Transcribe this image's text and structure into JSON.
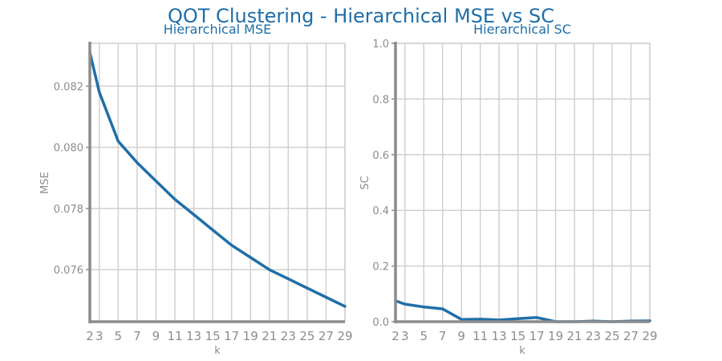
{
  "figure": {
    "title": "QOT Clustering - Hierarchical MSE vs SC",
    "line_color": "#1f6ea8",
    "title_color": "#1f6ea8",
    "axis_color": "#8c8c8c",
    "grid_color": "#d0d0d0"
  },
  "chart_data": [
    {
      "type": "line",
      "title": "Hierarchical MSE",
      "xlabel": "k",
      "ylabel": "MSE",
      "x": [
        2,
        3,
        5,
        7,
        9,
        11,
        13,
        15,
        17,
        19,
        21,
        23,
        25,
        27,
        29
      ],
      "xticks": [
        2,
        3,
        5,
        7,
        9,
        11,
        13,
        15,
        17,
        19,
        21,
        23,
        25,
        27,
        29
      ],
      "xlim": [
        2,
        29
      ],
      "yticks": [
        0.076,
        0.078,
        0.08,
        0.082
      ],
      "ytick_labels": [
        "0.076",
        "0.078",
        "0.080",
        "0.082"
      ],
      "ylim": [
        0.0743,
        0.0834
      ],
      "grid": true,
      "series": [
        {
          "values": [
            0.0831,
            0.0818,
            0.0802,
            0.0795,
            0.0789,
            0.0783,
            0.0778,
            0.0773,
            0.0768,
            0.0764,
            0.076,
            0.0757,
            0.0754,
            0.0751,
            0.0748
          ]
        }
      ]
    },
    {
      "type": "line",
      "title": "Hierarchical SC",
      "xlabel": "k",
      "ylabel": "SC",
      "x": [
        2,
        3,
        5,
        7,
        9,
        11,
        13,
        15,
        17,
        19,
        21,
        23,
        25,
        27,
        29
      ],
      "xticks": [
        2,
        3,
        5,
        7,
        9,
        11,
        13,
        15,
        17,
        19,
        21,
        23,
        25,
        27,
        29
      ],
      "xlim": [
        2,
        29
      ],
      "yticks": [
        0.0,
        0.2,
        0.4,
        0.6,
        0.8,
        1.0
      ],
      "ytick_labels": [
        "0.0",
        "0.2",
        "0.4",
        "0.6",
        "0.8",
        "1.0"
      ],
      "ylim": [
        0,
        1
      ],
      "grid": true,
      "series": [
        {
          "values": [
            0.075,
            0.063,
            0.053,
            0.046,
            0.008,
            0.009,
            0.006,
            0.011,
            0.015,
            0.0,
            0.0,
            0.002,
            0.0,
            0.002,
            0.003
          ]
        }
      ]
    }
  ]
}
